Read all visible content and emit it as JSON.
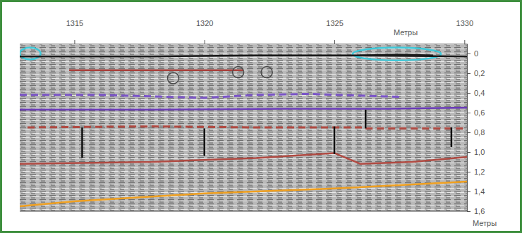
{
  "chart_data": {
    "type": "line",
    "x_label": "Метры",
    "y_label": "Метры",
    "xlim": [
      1312.9,
      1330.1
    ],
    "xticks": [
      1315,
      1320,
      1325,
      1330
    ],
    "ylim": [
      -0.1,
      1.6
    ],
    "yticks": [
      0,
      {
        "value": 0.2,
        "label": "0,2"
      },
      {
        "value": 0.4,
        "label": "0,4"
      },
      {
        "value": 0.6,
        "label": "0,6"
      },
      {
        "value": 0.8,
        "label": "0,8"
      },
      {
        "value": 1.0,
        "label": "1,0"
      },
      {
        "value": 1.2,
        "label": "1,2"
      },
      {
        "value": 1.4,
        "label": "1,4"
      },
      {
        "value": 1.6,
        "label": "1,6"
      }
    ],
    "grid": false,
    "zones": [
      {
        "x": [
          1312.9,
          1313.7
        ],
        "y": [
          -0.06,
          0.06
        ],
        "color": "#3ec8d8"
      },
      {
        "x": [
          1325.7,
          1329.1
        ],
        "y": [
          -0.06,
          0.07
        ],
        "color": "#3ec8d8"
      }
    ],
    "series": [
      {
        "type": "line",
        "color": "#1a1a1a",
        "line_style": "solid",
        "x": [
          1312.9,
          1318,
          1322,
          1326,
          1330.1
        ],
        "values": [
          0.03,
          0.03,
          0.02,
          0.02,
          0.03
        ]
      },
      {
        "type": "line",
        "color": "#1a1a1a",
        "line_style": "solid",
        "x": [
          1326.0,
          1327.5,
          1328.8
        ],
        "values": [
          0.02,
          0.01,
          0.02
        ]
      },
      {
        "type": "line",
        "color": "#a8403c",
        "line_style": "solid",
        "x": [
          1314.8,
          1318,
          1321.5
        ],
        "values": [
          0.17,
          0.17,
          0.17
        ]
      },
      {
        "type": "scatter",
        "color": "#4a4a4a",
        "marker": "circle",
        "x": [
          1318.8,
          1321.3,
          1322.4
        ],
        "values": [
          0.25,
          0.19,
          0.19
        ]
      },
      {
        "type": "line",
        "color": "#7b55c8",
        "line_style": "dashed",
        "x": [
          1312.9,
          1316,
          1320,
          1322,
          1324,
          1327.5
        ],
        "values": [
          0.42,
          0.42,
          0.45,
          0.42,
          0.41,
          0.44
        ]
      },
      {
        "type": "line",
        "color": "#6a3ab8",
        "line_style": "solid",
        "x": [
          1312.9,
          1318,
          1323,
          1327,
          1330.1
        ],
        "values": [
          0.57,
          0.57,
          0.56,
          0.56,
          0.55
        ]
      },
      {
        "type": "line",
        "color": "#b04a42",
        "line_style": "dashed",
        "x": [
          1313.2,
          1318,
          1322,
          1326.2
        ],
        "values": [
          0.75,
          0.74,
          0.75,
          0.75
        ]
      },
      {
        "type": "line",
        "color": "#b04a42",
        "line_style": "dashed",
        "x": [
          1326.2,
          1330.0
        ],
        "values": [
          0.76,
          0.76
        ]
      },
      {
        "type": "line",
        "color": "#b04a42",
        "line_style": "solid",
        "x": [
          1312.9,
          1318,
          1322,
          1325,
          1326,
          1328,
          1330.1
        ],
        "values": [
          1.12,
          1.1,
          1.06,
          1.01,
          1.12,
          1.1,
          1.05
        ]
      },
      {
        "type": "line",
        "color": "#f0a020",
        "line_style": "solid",
        "x": [
          1312.9,
          1315,
          1320,
          1325,
          1330.1
        ],
        "values": [
          1.55,
          1.5,
          1.42,
          1.37,
          1.3
        ]
      },
      {
        "type": "line",
        "color": "#111111",
        "line_style": "solid",
        "x": [
          1315.3,
          1315.3
        ],
        "values": [
          0.75,
          1.06
        ]
      },
      {
        "type": "line",
        "color": "#111111",
        "line_style": "solid",
        "x": [
          1320.0,
          1320.0
        ],
        "values": [
          0.76,
          1.04
        ]
      },
      {
        "type": "line",
        "color": "#111111",
        "line_style": "solid",
        "x": [
          1325.0,
          1325.0
        ],
        "values": [
          0.74,
          1.02
        ]
      },
      {
        "type": "line",
        "color": "#111111",
        "line_style": "solid",
        "x": [
          1326.2,
          1326.2
        ],
        "values": [
          0.57,
          0.76
        ]
      },
      {
        "type": "line",
        "color": "#111111",
        "line_style": "solid",
        "x": [
          1329.5,
          1329.5
        ],
        "values": [
          0.75,
          0.95
        ]
      }
    ]
  }
}
